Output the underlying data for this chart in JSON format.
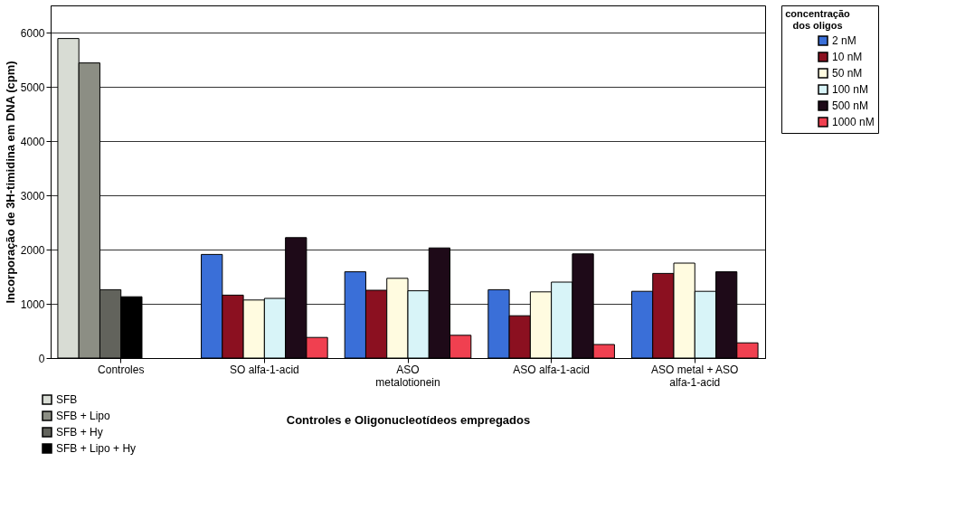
{
  "chart_data": {
    "type": "bar",
    "categories": [
      "Controles",
      "SO alfa-1-acid",
      "ASO metalotionein",
      "ASO alfa-1-acid",
      "ASO metal + ASO alfa-1-acid"
    ],
    "xlabel": "Controles e Oligonucleotídeos empregados",
    "ylabel": "Incorporação de 3H-timidina em DNA (cpm)",
    "legend_title": "concentração dos oligos",
    "ylim": [
      0,
      6500
    ],
    "yticks": [
      0,
      1000,
      2000,
      3000,
      4000,
      5000,
      6000
    ],
    "grid": "y",
    "legend": "right",
    "series": [
      {
        "name": "SFB",
        "color": "#d8dcd4",
        "values": [
          5890,
          null,
          null,
          null,
          null
        ]
      },
      {
        "name": "SFB + Lipo",
        "color": "#8c8e84",
        "values": [
          5440,
          null,
          null,
          null,
          null
        ]
      },
      {
        "name": "SFB + Hy",
        "color": "#62635c",
        "values": [
          1260,
          null,
          null,
          null,
          null
        ]
      },
      {
        "name": "SFB + Lipo + Hy",
        "color": "#000000",
        "values": [
          1130,
          null,
          null,
          null,
          null
        ]
      },
      {
        "name": "2 nM",
        "color": "#3a6fd8",
        "values": [
          null,
          1910,
          1590,
          1260,
          1230
        ]
      },
      {
        "name": "10 nM",
        "color": "#8b1020",
        "values": [
          null,
          1160,
          1250,
          780,
          1560
        ]
      },
      {
        "name": "50 nM",
        "color": "#fffbe0",
        "values": [
          null,
          1070,
          1470,
          1220,
          1750
        ]
      },
      {
        "name": "100 nM",
        "color": "#d8f4f8",
        "values": [
          null,
          1100,
          1240,
          1400,
          1230
        ]
      },
      {
        "name": "500 nM",
        "color": "#1e0a18",
        "values": [
          null,
          2220,
          2030,
          1920,
          1590
        ]
      },
      {
        "name": "1000 nM",
        "color": "#f04050",
        "values": [
          null,
          380,
          420,
          250,
          280
        ]
      }
    ]
  }
}
